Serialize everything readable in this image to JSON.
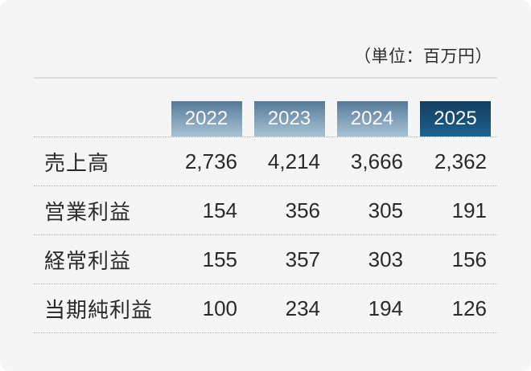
{
  "unit_note": "（単位：百万円）",
  "table": {
    "years": [
      "2022",
      "2023",
      "2024",
      "2025"
    ],
    "rows": [
      {
        "label": "売上高",
        "values": [
          "2,736",
          "4,214",
          "3,666",
          "2,362"
        ]
      },
      {
        "label": "営業利益",
        "values": [
          "154",
          "356",
          "305",
          "191"
        ]
      },
      {
        "label": "経常利益",
        "values": [
          "155",
          "357",
          "303",
          "156"
        ]
      },
      {
        "label": "当期純利益",
        "values": [
          "100",
          "234",
          "194",
          "126"
        ]
      }
    ]
  },
  "colors": {
    "card_background": "#f5f5f6",
    "year_chip_gradient_top": "#567898",
    "year_chip_gradient_bottom": "#a8c2d4",
    "current_year_chip_gradient_top": "#143e60",
    "current_year_chip_gradient_bottom": "#206292",
    "chip_text": "#fafcfd",
    "body_text": "#2a2a2a",
    "solid_divider": "#dcdcdc",
    "dotted_divider": "#b0b0b0"
  },
  "chart_data": {
    "type": "table",
    "title": "",
    "unit_label": "（単位：百万円）",
    "unit": "百万円",
    "categories": [
      "2022",
      "2023",
      "2024",
      "2025"
    ],
    "series": [
      {
        "name": "売上高",
        "values": [
          2736,
          4214,
          3666,
          2362
        ]
      },
      {
        "name": "営業利益",
        "values": [
          154,
          356,
          305,
          191
        ]
      },
      {
        "name": "経常利益",
        "values": [
          155,
          357,
          303,
          156
        ]
      },
      {
        "name": "当期純利益",
        "values": [
          100,
          234,
          194,
          126
        ]
      }
    ],
    "layout": {
      "highlighted_column": "2025",
      "row_separators": "dotted",
      "header_style": "gradient-chips"
    }
  }
}
